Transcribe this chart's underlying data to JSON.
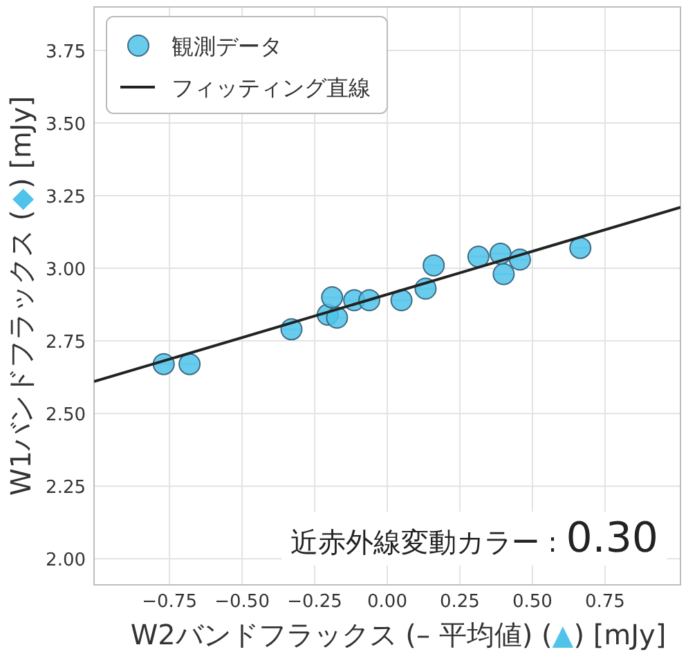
{
  "chart_data": {
    "type": "scatter",
    "xlabel": "W2バンドフラックス (– 平均値) (▲) [mJy]",
    "ylabel": "W1バンドフラックス (◆) [mJy]",
    "annotations": [
      "近赤外線変動カラー : 0.30"
    ],
    "xlim": [
      -1.01,
      1.01
    ],
    "ylim": [
      1.91,
      3.9
    ],
    "xticks": [
      {
        "value": -0.75,
        "label": "−0.75"
      },
      {
        "value": -0.5,
        "label": "−0.50"
      },
      {
        "value": -0.25,
        "label": "−0.25"
      },
      {
        "value": 0,
        "label": "0.00"
      },
      {
        "value": 0.25,
        "label": "0.25"
      },
      {
        "value": 0.5,
        "label": "0.50"
      },
      {
        "value": 0.75,
        "label": "0.75"
      }
    ],
    "yticks": [
      {
        "value": 2.0,
        "label": "2.00"
      },
      {
        "value": 2.25,
        "label": "2.25"
      },
      {
        "value": 2.5,
        "label": "2.50"
      },
      {
        "value": 2.75,
        "label": "2.75"
      },
      {
        "value": 3.0,
        "label": "3.00"
      },
      {
        "value": 3.25,
        "label": "3.25"
      },
      {
        "value": 3.5,
        "label": "3.50"
      },
      {
        "value": 3.75,
        "label": "3.75"
      }
    ],
    "grid": true,
    "legend": "top left",
    "series": [
      {
        "name": "観測データ",
        "marker": "circle",
        "color": "#4fc3ea",
        "x": [
          -0.77,
          -0.681,
          -0.33,
          -0.205,
          -0.19,
          -0.173,
          -0.114,
          -0.062,
          0.049,
          0.132,
          0.16,
          0.314,
          0.39,
          0.401,
          0.457,
          0.665
        ],
        "values": [
          2.67,
          2.67,
          2.79,
          2.84,
          2.9,
          2.83,
          2.89,
          2.89,
          2.89,
          2.93,
          3.01,
          3.04,
          3.05,
          2.98,
          3.03,
          3.07
        ],
        "xerrors": [
          0.03,
          0.03,
          0.03,
          0.03,
          0.03,
          0.03,
          0.03,
          0.03,
          0.03,
          0.03,
          0.03,
          0.03,
          0.03,
          0.03,
          0.03,
          0.03
        ]
      },
      {
        "name": "フィッティング直線",
        "type": "line",
        "marker": "none",
        "color": "#222222",
        "x": [
          -1.01,
          1.01
        ],
        "values": [
          2.61,
          3.21
        ]
      }
    ]
  }
}
